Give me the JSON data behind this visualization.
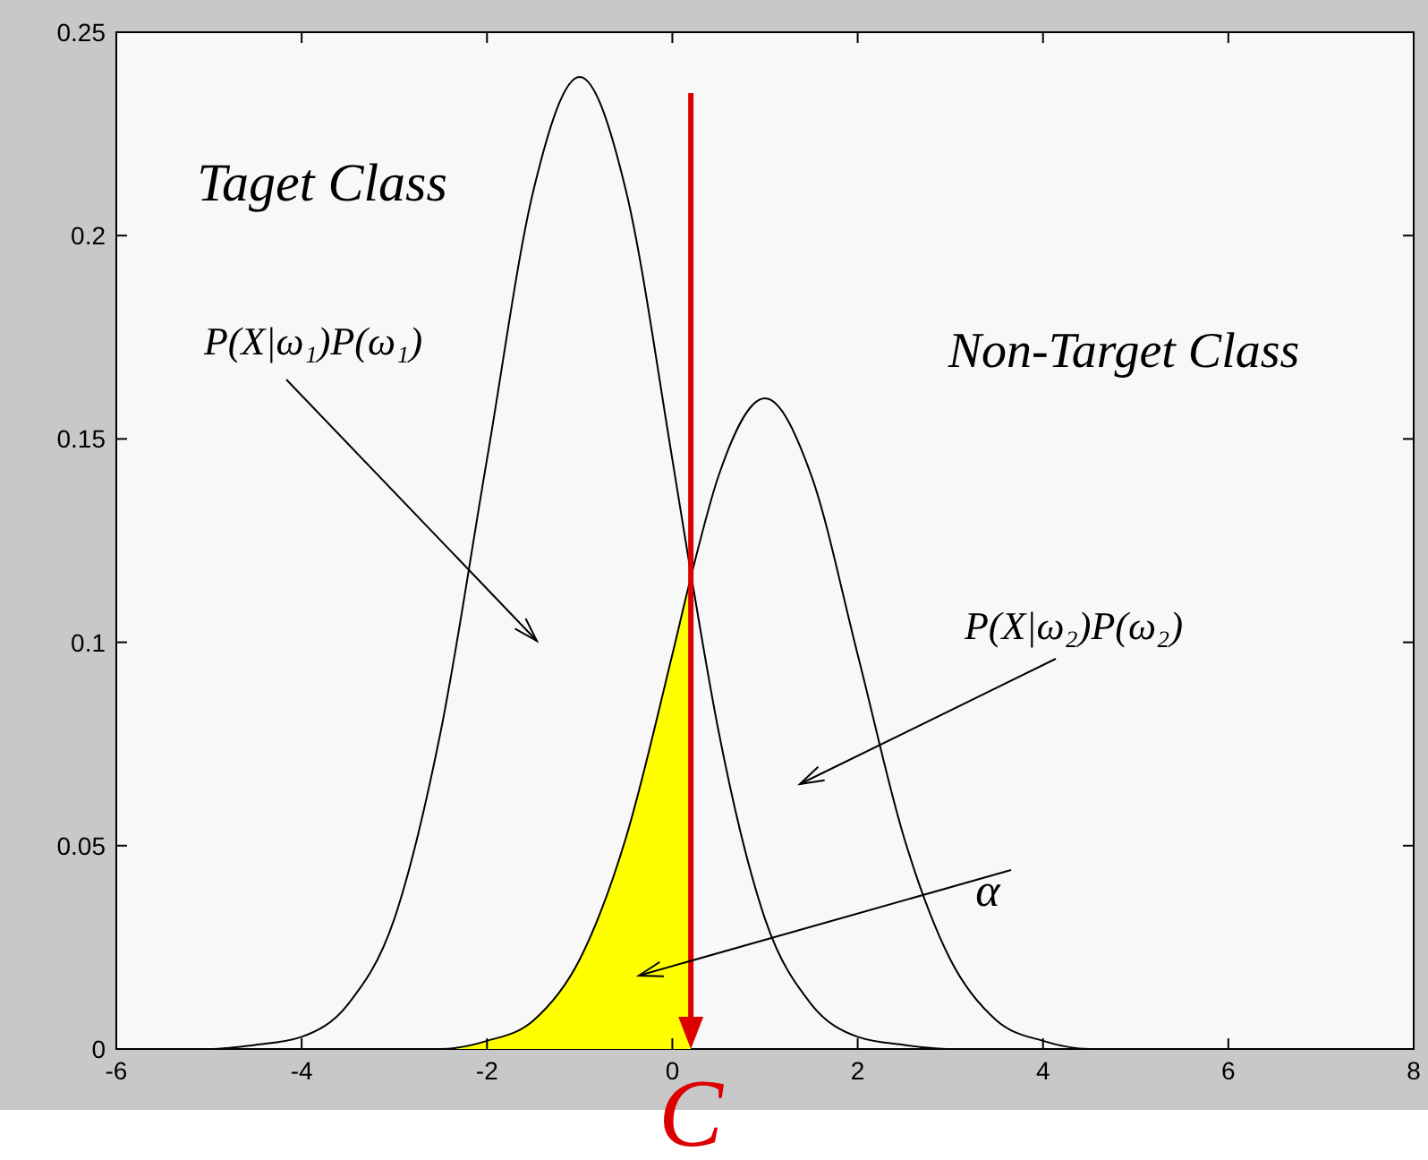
{
  "chart_data": {
    "type": "line",
    "x": [
      -6,
      -5.5,
      -5,
      -4.5,
      -4,
      -3.5,
      -3,
      -2.5,
      -2,
      -1.5,
      -1,
      -0.5,
      0,
      0.2,
      0.5,
      1,
      1.5,
      2,
      2.5,
      3,
      3.5,
      4,
      4.5,
      5,
      5.5,
      6,
      6.5,
      7,
      7.5,
      8
    ],
    "series": [
      {
        "type": "area",
        "color": "#ffff00",
        "x": [
          -2.5,
          -2,
          -1.5,
          -1,
          -0.5,
          0,
          0.2
        ],
        "values": [
          0,
          0.002,
          0.007,
          0.022,
          0.052,
          0.097,
          0.116
        ]
      },
      {
        "color": "#000000",
        "values": [
          0,
          0,
          0,
          0.001,
          0.003,
          0.011,
          0.032,
          0.078,
          0.145,
          0.211,
          0.239,
          0.211,
          0.145,
          0.117,
          0.078,
          0.032,
          0.011,
          0.003,
          0.001,
          0,
          0,
          0,
          0,
          0,
          0,
          0,
          0,
          0,
          0,
          0
        ]
      },
      {
        "color": "#000000",
        "values": [
          0,
          0,
          0,
          0,
          0,
          0,
          0,
          0,
          0.002,
          0.007,
          0.022,
          0.052,
          0.097,
          0.116,
          0.141,
          0.16,
          0.141,
          0.097,
          0.052,
          0.022,
          0.007,
          0.002,
          0,
          0,
          0,
          0,
          0,
          0,
          0,
          0
        ]
      }
    ],
    "xlim": [
      -6,
      8
    ],
    "xticks": [
      -6,
      -4,
      -2,
      0,
      2,
      4,
      6,
      8
    ],
    "ylim": [
      0,
      0.25
    ],
    "yticks": [
      0,
      0.05,
      0.1,
      0.15,
      0.2,
      0.25
    ],
    "ref_lines": [
      {
        "axis": "x",
        "value": 0.2,
        "label": "C",
        "color": "#dd0000"
      }
    ],
    "annotations": [
      "Taget Class",
      "P(X|ω₁)P(ω₁)",
      "Non-Target Class",
      "P(X|ω₂)P(ω₂)",
      "α"
    ],
    "grid": false,
    "marker": "none",
    "line_style": "solid"
  }
}
